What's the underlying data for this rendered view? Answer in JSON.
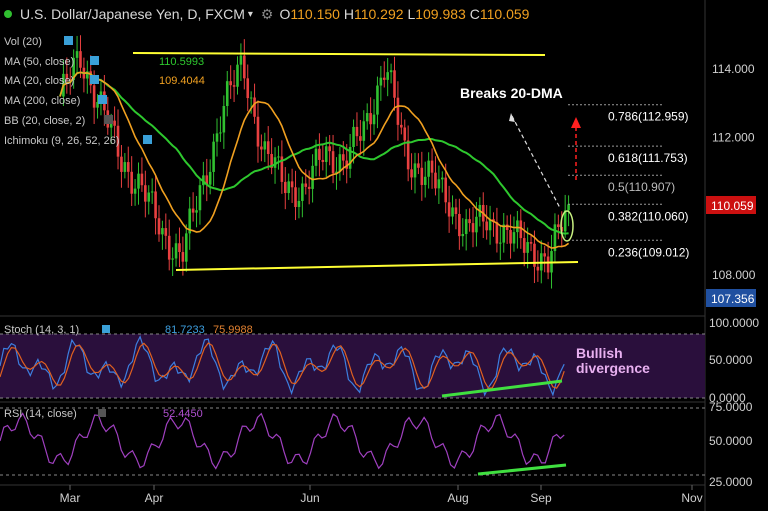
{
  "header": {
    "symbol": "U.S. Dollar/Japanese Yen, D, FXCM",
    "open_label": "O",
    "open": "110.150",
    "high_label": "H",
    "high": "110.292",
    "low_label": "L",
    "low": "109.983",
    "close_label": "C",
    "close": "110.059"
  },
  "indicators": {
    "vol": "Vol (20)",
    "ma50": "MA (50, close)",
    "ma50_value": "110.5993",
    "ma20": "MA (20, close)",
    "ma20_value": "109.4044",
    "ma200": "MA (200, close)",
    "bb": "BB (20, close, 2)",
    "ichimoku": "Ichimoku (9, 26, 52, 26)"
  },
  "annotations": {
    "breaks": "Breaks 20-DMA",
    "bullish": "Bullish",
    "divergence": "divergence"
  },
  "fib_levels": [
    {
      "label": "0.786(112.959)",
      "value": 112.959
    },
    {
      "label": "0.618(111.753)",
      "value": 111.753
    },
    {
      "label": "0.5(110.907)",
      "value": 110.907
    },
    {
      "label": "0.382(110.060)",
      "value": 110.06
    },
    {
      "label": "0.236(109.012)",
      "value": 109.012
    }
  ],
  "price_axis": {
    "ticks": [
      "114.000",
      "112.000",
      "110.000",
      "108.000"
    ],
    "tick_values": [
      114,
      112,
      110,
      108
    ],
    "current_price": "110.059",
    "low_marker": "107.356"
  },
  "stoch": {
    "label": "Stoch (14, 3, 1)",
    "k_value": "81.7233",
    "d_value": "75.9988",
    "ticks": [
      "100.0000",
      "50.0000",
      "0.0000"
    ],
    "tick_values": [
      100,
      50,
      0
    ]
  },
  "rsi": {
    "label": "RSI (14, close)",
    "value": "52.4450",
    "ticks": [
      "75.0000",
      "50.0000",
      "25.0000"
    ],
    "tick_values": [
      75,
      50,
      25
    ]
  },
  "time_axis": {
    "labels": [
      "Mar",
      "Apr",
      "Jun",
      "Aug",
      "Sep",
      "Nov"
    ]
  },
  "colors": {
    "background": "#000000",
    "ma50": "#2ec82e",
    "ma20": "#f0a020",
    "support_resistance": "#ffff33",
    "bull_candle": "#30c030",
    "bear_candle": "#e84040",
    "stoch_k": "#3d7fe0",
    "stoch_d": "#e06020",
    "rsi": "#a040c0",
    "divergence": "#40e040",
    "current_price_bg": "#cc1010",
    "low_price_bg": "#2050a0"
  },
  "chart_data": {
    "type": "line",
    "title": "U.S. Dollar/Japanese Yen, D, FXCM",
    "x": [
      "Mar",
      "Apr",
      "Jun",
      "Aug",
      "Sep",
      "Nov"
    ],
    "ylim": [
      107.0,
      115.3
    ],
    "close_series": {
      "name": "USD/JPY close",
      "dates": [
        "Feb-20",
        "Mar-01",
        "Mar-10",
        "Mar-20",
        "Mar-27",
        "Apr-01",
        "Apr-10",
        "Apr-20",
        "May-01",
        "May-10",
        "May-20",
        "May-30",
        "Jun-05",
        "Jun-15",
        "Jun-25",
        "Jul-01",
        "Jul-10",
        "Jul-20",
        "Jul-27",
        "Aug-01",
        "Aug-10",
        "Aug-20",
        "Aug-28",
        "Sep-01",
        "Sep-06",
        "Sep-08"
      ],
      "values": [
        113.2,
        114.3,
        113.0,
        111.3,
        110.6,
        109.2,
        108.6,
        110.6,
        112.8,
        114.2,
        111.5,
        110.8,
        110.3,
        111.7,
        111.2,
        112.4,
        114.1,
        111.5,
        110.9,
        110.3,
        109.2,
        109.7,
        109.1,
        108.9,
        108.3,
        110.06
      ]
    },
    "ma50_value": 110.5993,
    "ma20_value": 109.4044,
    "stoch_values": {
      "k": 81.7233,
      "d": 75.9988
    },
    "rsi_value": 52.445,
    "fib_levels": [
      {
        "ratio": 0.786,
        "value": 112.959
      },
      {
        "ratio": 0.618,
        "value": 111.753
      },
      {
        "ratio": 0.5,
        "value": 110.907
      },
      {
        "ratio": 0.382,
        "value": 110.06
      },
      {
        "ratio": 0.236,
        "value": 109.012
      }
    ],
    "resistance": 114.4,
    "support_start": 108.1,
    "support_end": 108.45,
    "annotations": [
      "Breaks 20-DMA",
      "Bullish divergence"
    ]
  }
}
